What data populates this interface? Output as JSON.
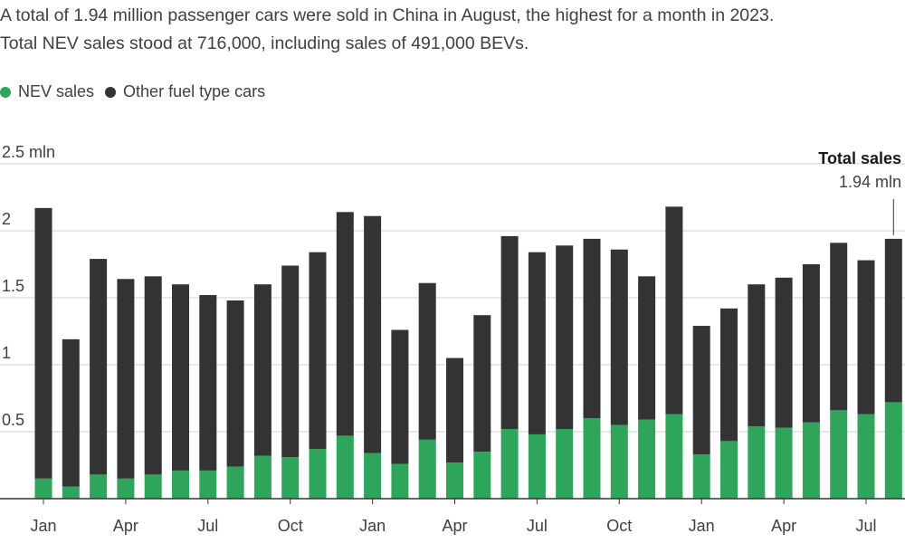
{
  "subtitle": {
    "line1": "A total of 1.94 million passenger cars were sold in China in August, the highest for a month in 2023.",
    "line2": "Total NEV sales stood at 716,000, including sales of 491,000 BEVs."
  },
  "colors": {
    "nev": "#2ea55a",
    "other": "#333333",
    "grid": "#d0d0d0",
    "axis": "#333333"
  },
  "chart_data": {
    "type": "bar",
    "stacked": true,
    "ylim": [
      0,
      2.5
    ],
    "yticks": [
      {
        "value": 0.5,
        "label": "0.5"
      },
      {
        "value": 1,
        "label": "1"
      },
      {
        "value": 1.5,
        "label": "1.5"
      },
      {
        "value": 2,
        "label": "2"
      },
      {
        "value": 2.5,
        "label": "2.5 mln"
      }
    ],
    "xtick_labels": [
      {
        "index": 0,
        "label": "Jan"
      },
      {
        "index": 3,
        "label": "Apr"
      },
      {
        "index": 6,
        "label": "Jul"
      },
      {
        "index": 9,
        "label": "Oct"
      },
      {
        "index": 12,
        "label": "Jan"
      },
      {
        "index": 15,
        "label": "Apr"
      },
      {
        "index": 18,
        "label": "Jul"
      },
      {
        "index": 21,
        "label": "Oct"
      },
      {
        "index": 24,
        "label": "Jan"
      },
      {
        "index": 27,
        "label": "Apr"
      },
      {
        "index": 30,
        "label": "Jul"
      }
    ],
    "grid": true,
    "legend_position": "top-left",
    "series": [
      {
        "name": "NEV sales",
        "color": "#2ea55a",
        "values": [
          0.15,
          0.09,
          0.18,
          0.15,
          0.18,
          0.21,
          0.21,
          0.24,
          0.32,
          0.31,
          0.37,
          0.47,
          0.34,
          0.26,
          0.44,
          0.27,
          0.35,
          0.52,
          0.48,
          0.52,
          0.6,
          0.55,
          0.59,
          0.63,
          0.33,
          0.43,
          0.54,
          0.53,
          0.57,
          0.66,
          0.63,
          0.72
        ]
      },
      {
        "name": "Other fuel type cars",
        "color": "#333333",
        "values": [
          2.02,
          1.1,
          1.61,
          1.49,
          1.48,
          1.39,
          1.31,
          1.24,
          1.28,
          1.43,
          1.47,
          1.67,
          1.77,
          1.0,
          1.17,
          0.78,
          1.02,
          1.44,
          1.36,
          1.37,
          1.34,
          1.31,
          1.07,
          1.55,
          0.96,
          0.99,
          1.06,
          1.12,
          1.18,
          1.25,
          1.15,
          1.22
        ]
      }
    ],
    "annotation": {
      "title": "Total sales",
      "value": "1.94 mln",
      "index": 31
    }
  }
}
